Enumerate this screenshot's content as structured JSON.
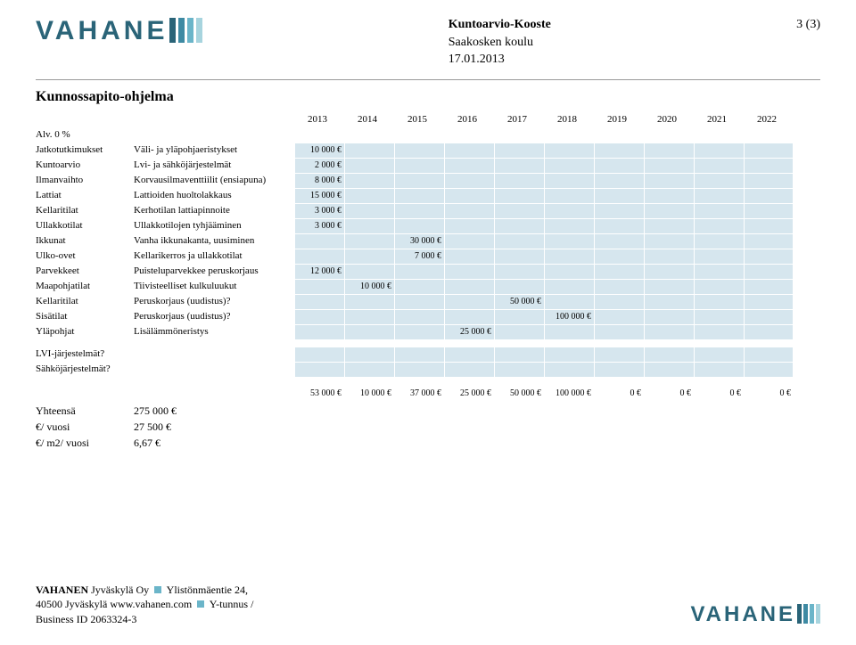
{
  "header": {
    "title": "Kuntoarvio-Kooste",
    "subtitle": "Saakosken koulu",
    "date": "17.01.2013",
    "page": "3 (3)"
  },
  "logo": {
    "text": "VAHANE",
    "bar_colors": [
      "#2a6478",
      "#3e8aa3",
      "#6bb5c9",
      "#a7d4de"
    ]
  },
  "section_title": "Kunnossapito-ohjelma",
  "years": [
    "2013",
    "2014",
    "2015",
    "2016",
    "2017",
    "2018",
    "2019",
    "2020",
    "2021",
    "2022"
  ],
  "alv_row": {
    "c0": "Alv. 0 %",
    "c1": ""
  },
  "rows": [
    {
      "c0": "Jatkotutkimukset",
      "c1": "Väli- ja yläpohjaeristykset",
      "vals": [
        "10 000 €",
        "",
        "",
        "",
        "",
        "",
        "",
        "",
        "",
        ""
      ]
    },
    {
      "c0": "Kuntoarvio",
      "c1": "Lvi- ja sähköjärjestelmät",
      "vals": [
        "2 000 €",
        "",
        "",
        "",
        "",
        "",
        "",
        "",
        "",
        ""
      ]
    },
    {
      "c0": "Ilmanvaihto",
      "c1": "Korvausilmaventtiilit (ensiapuna)",
      "vals": [
        "8 000 €",
        "",
        "",
        "",
        "",
        "",
        "",
        "",
        "",
        ""
      ]
    },
    {
      "c0": "Lattiat",
      "c1": "Lattioiden huoltolakkaus",
      "vals": [
        "15 000 €",
        "",
        "",
        "",
        "",
        "",
        "",
        "",
        "",
        ""
      ]
    },
    {
      "c0": "Kellaritilat",
      "c1": "Kerhotilan lattiapinnoite",
      "vals": [
        "3 000 €",
        "",
        "",
        "",
        "",
        "",
        "",
        "",
        "",
        ""
      ]
    },
    {
      "c0": "Ullakkotilat",
      "c1": "Ullakkotilojen tyhjääminen",
      "vals": [
        "3 000 €",
        "",
        "",
        "",
        "",
        "",
        "",
        "",
        "",
        ""
      ]
    },
    {
      "c0": "Ikkunat",
      "c1": "Vanha ikkunakanta, uusiminen",
      "vals": [
        "",
        "",
        "30 000 €",
        "",
        "",
        "",
        "",
        "",
        "",
        ""
      ]
    },
    {
      "c0": "Ulko-ovet",
      "c1": "Kellarikerros ja ullakkotilat",
      "vals": [
        "",
        "",
        "7 000 €",
        "",
        "",
        "",
        "",
        "",
        "",
        ""
      ]
    },
    {
      "c0": "Parvekkeet",
      "c1": "Puisteluparvekkee peruskorjaus",
      "vals": [
        "12 000 €",
        "",
        "",
        "",
        "",
        "",
        "",
        "",
        "",
        ""
      ]
    },
    {
      "c0": "Maapohjatilat",
      "c1": "Tiivisteelliset kulkuluukut",
      "vals": [
        "",
        "10 000 €",
        "",
        "",
        "",
        "",
        "",
        "",
        "",
        ""
      ]
    },
    {
      "c0": "Kellaritilat",
      "c1": "Peruskorjaus (uudistus)?",
      "vals": [
        "",
        "",
        "",
        "",
        "50 000 €",
        "",
        "",
        "",
        "",
        ""
      ]
    },
    {
      "c0": "Sisätilat",
      "c1": "Peruskorjaus (uudistus)?",
      "vals": [
        "",
        "",
        "",
        "",
        "",
        "100 000 €",
        "",
        "",
        "",
        ""
      ]
    },
    {
      "c0": "Yläpohjat",
      "c1": "Lisälämmöneristys",
      "vals": [
        "",
        "",
        "",
        "25 000 €",
        "",
        "",
        "",
        "",
        "",
        ""
      ]
    }
  ],
  "extra_rows": [
    {
      "c0": "LVI-järjestelmät?",
      "c1": ""
    },
    {
      "c0": "Sähköjärjestelmät?",
      "c1": ""
    }
  ],
  "totals": [
    "53 000 €",
    "10 000 €",
    "37 000 €",
    "25 000 €",
    "50 000 €",
    "100 000 €",
    "0 €",
    "0 €",
    "0 €",
    "0 €"
  ],
  "summary": [
    {
      "label": "Yhteensä",
      "value": "275 000 €"
    },
    {
      "label": "€/ vuosi",
      "value": "27 500 €"
    },
    {
      "label": "€/ m2/ vuosi",
      "value": "6,67 €"
    }
  ],
  "footer": {
    "line1a": "VAHANEN",
    "line1b": " Jyväskylä Oy ",
    "line1c": " Ylistönmäentie 24,",
    "line2a": "40500 Jyväskylä www.vahanen.com ",
    "line2b": " Y-tunnus /",
    "line3": "Business ID 2063324-3",
    "sq_color": "#6bb5c9"
  },
  "colors": {
    "shade": "#d6e6ee"
  }
}
